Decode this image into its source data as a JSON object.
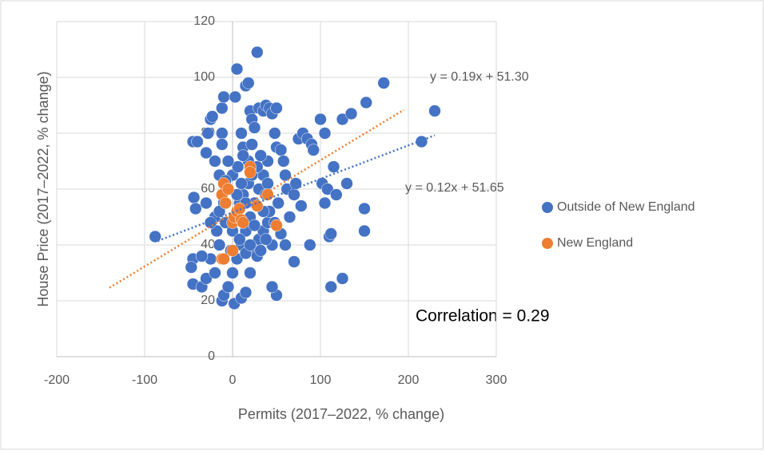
{
  "chart_data": {
    "type": "scatter",
    "xlabel": "Permits (2017–2022, % change)",
    "ylabel": "House Price  (2017–2022, % change)",
    "xlim": [
      -200,
      300
    ],
    "xticks": [
      -200,
      -100,
      0,
      100,
      200,
      300
    ],
    "ylim": [
      0,
      120
    ],
    "yticks": [
      0,
      20,
      40,
      60,
      80,
      100,
      120
    ],
    "grid": true,
    "legend": "right",
    "series": [
      {
        "name": "Outside of New England",
        "color": "#4472c4",
        "x": [
          -88,
          -45,
          -45,
          -47,
          -44,
          -42,
          -45,
          -40,
          -30,
          -28,
          -25,
          -23,
          -20,
          -15,
          -12,
          -12,
          -12,
          -10,
          -12,
          -10,
          -35,
          -30,
          -25,
          -20,
          -30,
          -20,
          -18,
          -15,
          -10,
          -5,
          0,
          3,
          5,
          10,
          12,
          15,
          18,
          20,
          22,
          25,
          28,
          30,
          35,
          38,
          42,
          45,
          50,
          48,
          50,
          55,
          58,
          60,
          62,
          40,
          35,
          30,
          25,
          20,
          15,
          10,
          5,
          0,
          -5,
          2,
          10,
          15,
          20,
          25,
          30,
          35,
          40,
          45,
          50,
          45,
          55,
          60,
          65,
          70,
          70,
          72,
          75,
          78,
          80,
          85,
          88,
          90,
          92,
          100,
          102,
          105,
          105,
          108,
          110,
          112,
          112,
          115,
          118,
          125,
          125,
          130,
          135,
          150,
          150,
          152,
          172,
          215,
          230,
          -8,
          0,
          5,
          8,
          12,
          18,
          22,
          28,
          32,
          38,
          42,
          48,
          52,
          -2,
          8,
          15,
          20,
          28,
          32,
          38,
          18,
          22,
          12,
          6,
          -15,
          -25,
          -35,
          -5,
          25,
          35,
          40,
          15,
          10,
          5,
          -8
        ],
        "values": [
          43,
          26,
          35,
          32,
          57,
          53,
          77,
          77,
          73,
          80,
          85,
          86,
          70,
          65,
          80,
          76,
          89,
          93,
          20,
          22,
          25,
          28,
          35,
          30,
          55,
          50,
          45,
          40,
          55,
          60,
          65,
          93,
          103,
          80,
          75,
          97,
          98,
          88,
          85,
          82,
          109,
          89,
          88,
          90,
          89,
          87,
          89,
          80,
          75,
          74,
          70,
          65,
          60,
          70,
          65,
          60,
          55,
          50,
          45,
          40,
          35,
          30,
          25,
          19,
          21,
          23,
          30,
          38,
          42,
          45,
          48,
          40,
          22,
          25,
          44,
          40,
          50,
          34,
          58,
          62,
          78,
          54,
          80,
          78,
          40,
          76,
          74,
          85,
          62,
          55,
          80,
          60,
          43,
          25,
          44,
          68,
          58,
          28,
          85,
          62,
          87,
          45,
          53,
          91,
          98,
          77,
          88,
          48,
          45,
          50,
          55,
          58,
          62,
          65,
          68,
          72,
          58,
          52,
          48,
          55,
          38,
          42,
          37,
          40,
          36,
          38,
          42,
          70,
          76,
          72,
          68,
          52,
          48,
          36,
          70,
          47,
          52,
          62,
          55,
          62,
          58,
          63
        ]
      },
      {
        "name": "New England",
        "color": "#ed7d31",
        "x": [
          -10,
          -12,
          -8,
          -5,
          0,
          2,
          5,
          8,
          10,
          12,
          -12,
          -10,
          0,
          20,
          20,
          28,
          40,
          50,
          20
        ],
        "values": [
          62,
          58,
          55,
          60,
          48,
          50,
          52,
          53,
          49,
          48,
          35,
          35,
          38,
          67,
          68,
          54,
          58,
          47,
          66
        ]
      }
    ],
    "trendlines": [
      {
        "label": "y = 0.19x + 51.30",
        "color": "#ed7d31",
        "x": [
          -140,
          195
        ],
        "values": [
          24.7,
          88.4
        ]
      },
      {
        "label": "y = 0.12x + 51.65",
        "color": "#4472c4",
        "x": [
          -85,
          230
        ],
        "values": [
          41.45,
          79.25
        ]
      }
    ],
    "annotation": "Correlation = 0.29"
  }
}
